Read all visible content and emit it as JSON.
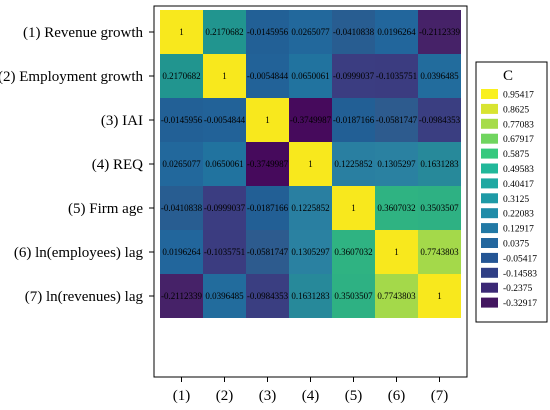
{
  "chart_data": {
    "type": "heatmap",
    "row_labels": [
      "(1) Revenue growth",
      "(2) Employment growth",
      "(3) IAI",
      "(4) REQ",
      "(5) Firm age",
      "(6) ln(employees) lag",
      "(7) ln(revenues) lag"
    ],
    "col_labels": [
      "(1)",
      "(2)",
      "(3)",
      "(4)",
      "(5)",
      "(6)",
      "(7)"
    ],
    "values": [
      [
        1,
        0.2170682,
        -0.0145956,
        0.0265077,
        -0.0410838,
        0.0196264,
        -0.2112339
      ],
      [
        0.2170682,
        1,
        -0.0054844,
        0.0650061,
        -0.0999037,
        -0.1035751,
        0.0396485
      ],
      [
        -0.0145956,
        -0.0054844,
        1,
        -0.3749987,
        -0.0187166,
        -0.0581747,
        -0.0984353
      ],
      [
        0.0265077,
        0.0650061,
        -0.3749987,
        1,
        0.1225852,
        0.1305297,
        0.1631283
      ],
      [
        -0.0410838,
        -0.0999037,
        -0.0187166,
        0.1225852,
        1,
        0.3607032,
        0.3503507
      ],
      [
        0.0196264,
        -0.1035751,
        -0.0581747,
        0.1305297,
        0.3607032,
        1,
        0.7743803
      ],
      [
        -0.2112339,
        0.0396485,
        -0.0984353,
        0.1631283,
        0.3503507,
        0.7743803,
        1
      ]
    ],
    "cell_labels": [
      [
        "1",
        "0.2170682",
        "-0.0145956",
        "0.0265077",
        "-0.0410838",
        "0.0196264",
        "-0.2112339"
      ],
      [
        "0.2170682",
        "1",
        "-0.0054844",
        "0.0650061",
        "-0.0999037",
        "-0.1035751",
        "0.0396485"
      ],
      [
        "-0.0145956",
        "-0.0054844",
        "1",
        "-0.3749987",
        "-0.0187166",
        "-0.0581747",
        "-0.0984353"
      ],
      [
        "0.0265077",
        "0.0650061",
        "-0.3749987",
        "1",
        "0.1225852",
        "0.1305297",
        "0.1631283"
      ],
      [
        "-0.0410838",
        "-0.0999037",
        "-0.0187166",
        "0.1225852",
        "1",
        "0.3607032",
        "0.3503507"
      ],
      [
        "0.0196264",
        "-0.1035751",
        "-0.0581747",
        "0.1305297",
        "0.3607032",
        "1",
        "0.7743803"
      ],
      [
        "-0.2112339",
        "0.0396485",
        "-0.0984353",
        "0.1631283",
        "0.3503507",
        "0.7743803",
        "1"
      ]
    ],
    "legend": {
      "title": "C",
      "ticks": [
        "0.95417",
        "0.8625",
        "0.77083",
        "0.67917",
        "0.5875",
        "0.49583",
        "0.40417",
        "0.3125",
        "0.22083",
        "0.12917",
        "0.0375",
        "-0.05417",
        "-0.14583",
        "-0.2375",
        "-0.32917"
      ],
      "colors": [
        "#F9F01E",
        "#D8E431",
        "#A6DC4A",
        "#70D55F",
        "#36C97E",
        "#21B89A",
        "#1FA8A2",
        "#1E9AA6",
        "#1F8CA8",
        "#2279A5",
        "#23679E",
        "#245594",
        "#2F3F85",
        "#3B2875",
        "#431660"
      ],
      "placement": "right"
    },
    "colormap": [
      [
        -0.375,
        "#460A5C"
      ],
      [
        -0.2112,
        "#462268"
      ],
      [
        -0.1,
        "#3B3D81"
      ],
      [
        -0.0581,
        "#2D5B8E"
      ],
      [
        -0.02,
        "#225F95"
      ],
      [
        0.02,
        "#22669C"
      ],
      [
        0.065,
        "#21739F"
      ],
      [
        0.13,
        "#2A81A1"
      ],
      [
        0.217,
        "#21958F"
      ],
      [
        0.36,
        "#2FB382"
      ],
      [
        0.7744,
        "#A4D94A"
      ],
      [
        1.0,
        "#F8E81D"
      ]
    ]
  }
}
